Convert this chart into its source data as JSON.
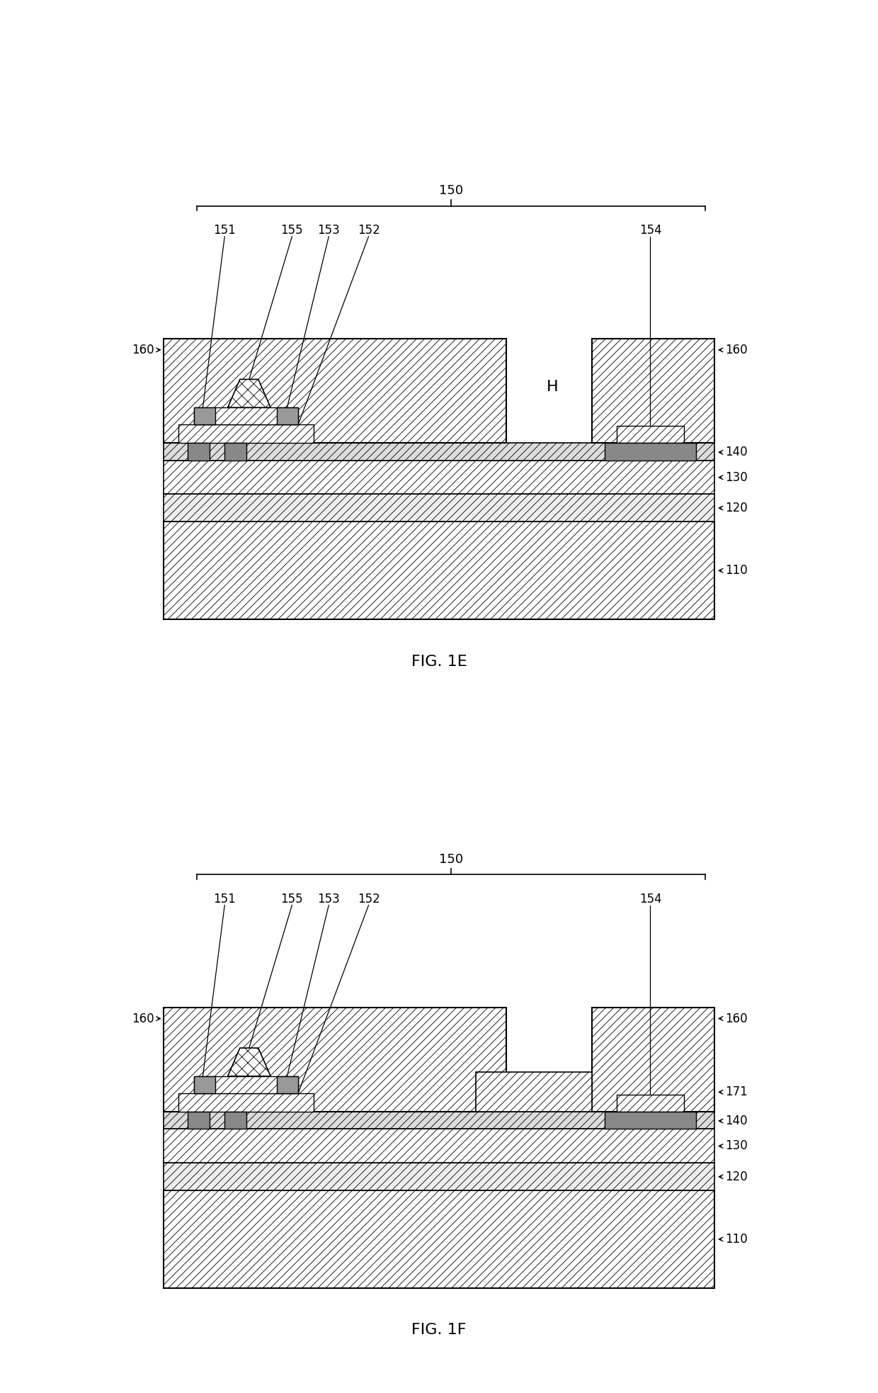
{
  "bg_color": "#ffffff",
  "fig1_label": "FIG. 1E",
  "fig2_label": "FIG. 1F",
  "fig_width": 12.4,
  "fig_height": 19.66
}
